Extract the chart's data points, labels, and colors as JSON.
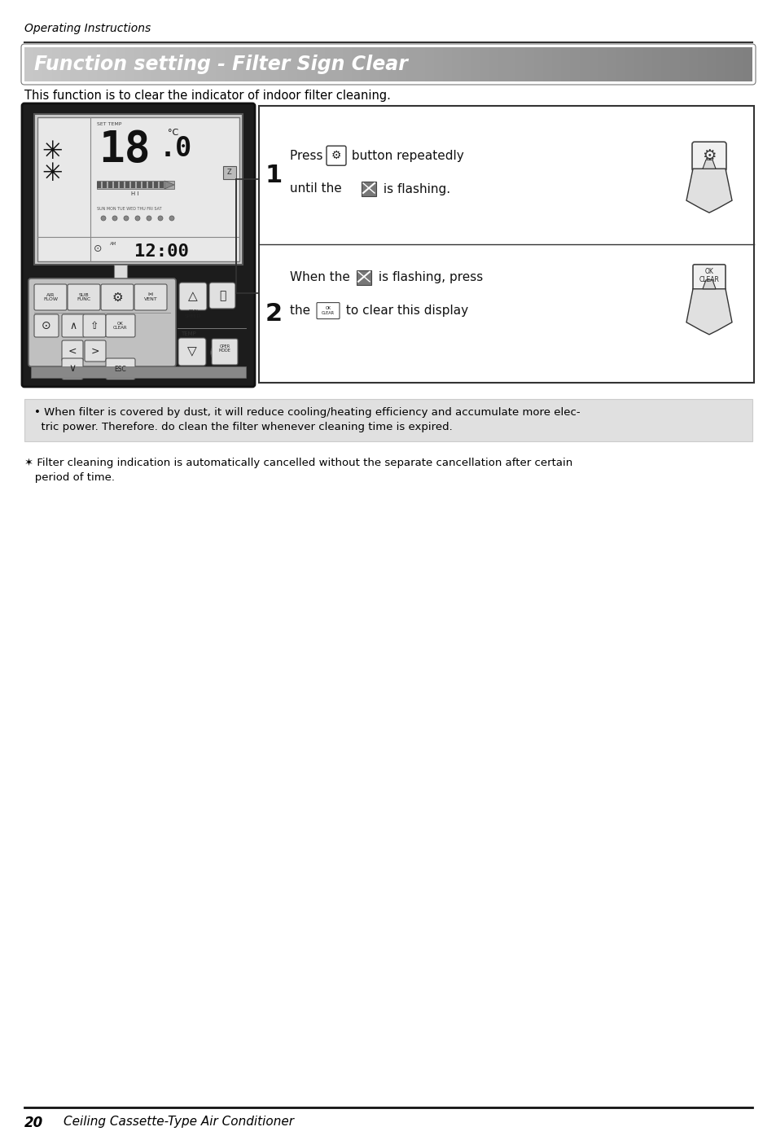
{
  "page_title": "Operating Instructions",
  "section_title": "Function setting - Filter Sign Clear",
  "intro_text": "This function is to clear the indicator of indoor filter cleaning.",
  "note_text": "• When filter is covered by dust, it will reduce cooling/heating efficiency and accumulate more elec-\n  tric power. Therefore. do clean the filter whenever cleaning time is expired.",
  "footnote_text": "✶ Filter cleaning indication is automatically cancelled without the separate cancellation after certain\n   period of time.",
  "footer_page": "20",
  "footer_text": "Ceiling Cassette-Type Air Conditioner",
  "bg_color": "#ffffff"
}
